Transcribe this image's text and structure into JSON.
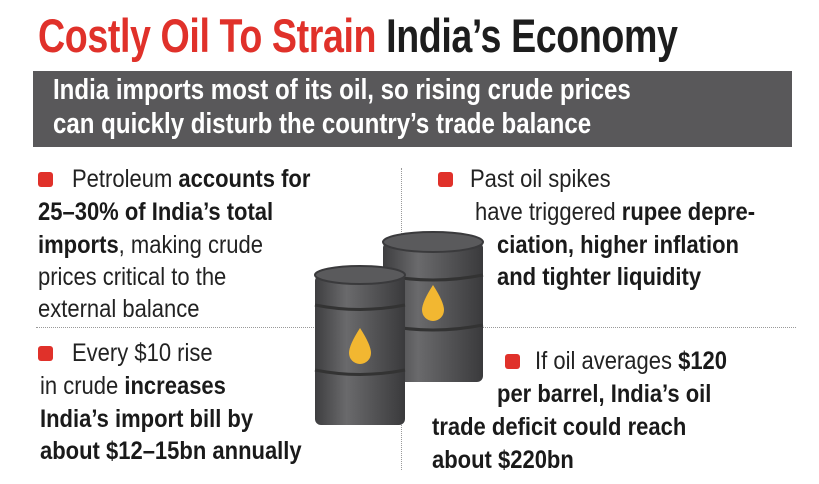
{
  "title": {
    "red": "Costly Oil To Strain",
    "dark": "India’s Economy"
  },
  "banner": {
    "line1": "India imports most of its oil, so rising crude prices",
    "line2": "can quickly disturb the country’s trade balance"
  },
  "colors": {
    "accent": "#e0312a",
    "banner_bg": "#59585a",
    "drop": "#f2b731",
    "barrel": "#555557"
  },
  "points": {
    "top_left": {
      "l1a": "Petroleum ",
      "l1b": "accounts for",
      "l2": "25–30% of India’s total",
      "l3a": "imports",
      "l3b": ", making crude",
      "l4": "prices critical to the",
      "l5": "external balance"
    },
    "top_right": {
      "l1": "Past oil spikes",
      "l2a": "have triggered ",
      "l2b": "rupee depre-",
      "l3": "ciation, higher inflation",
      "l4": "and tighter liquidity"
    },
    "bottom_left": {
      "l1": "Every $10 rise",
      "l2a": "in crude ",
      "l2b": "increases",
      "l3": "India’s import bill by",
      "l4": "about $12–15bn annually"
    },
    "bottom_right": {
      "l1a": "If oil averages ",
      "l1b": "$120",
      "l2": "per barrel, India’s oil",
      "l3": "trade deficit could reach",
      "l4": "about $220bn"
    }
  }
}
